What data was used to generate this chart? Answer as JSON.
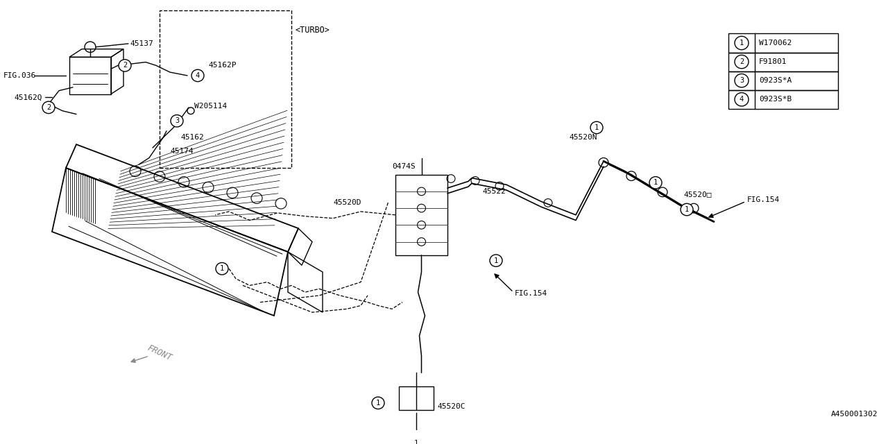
{
  "bg_color": "#ffffff",
  "line_color": "#000000",
  "fig_width": 12.8,
  "fig_height": 6.4,
  "legend_rows": [
    {
      "num": "1",
      "code": "W170062"
    },
    {
      "num": "2",
      "code": "F91801"
    },
    {
      "num": "3",
      "code": "0923S*A"
    },
    {
      "num": "4",
      "code": "0923S*B"
    }
  ],
  "watermark": "A450001302",
  "turbo_label": "<TURBO>",
  "front_label": "FRONT"
}
